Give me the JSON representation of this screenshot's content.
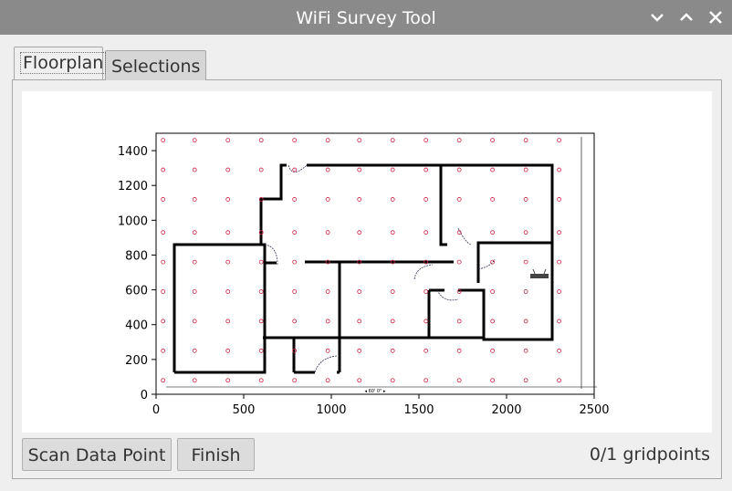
{
  "window": {
    "title": "WiFi Survey Tool"
  },
  "tabs": [
    {
      "label": "Floorplan",
      "active": true
    },
    {
      "label": "Selections",
      "active": false
    }
  ],
  "chart_data": {
    "type": "scatter",
    "x_ticks": [
      "0",
      "500",
      "1000",
      "1500",
      "2000",
      "2500"
    ],
    "y_ticks": [
      "0",
      "200",
      "400",
      "600",
      "800",
      "1000",
      "1200",
      "1400"
    ],
    "xlim": [
      0,
      2500
    ],
    "ylim": [
      0,
      1500
    ],
    "grid_x": [
      40,
      220,
      410,
      600,
      790,
      980,
      1160,
      1350,
      1540,
      1730,
      1920,
      2110,
      2300
    ],
    "grid_y": [
      80,
      250,
      420,
      590,
      760,
      930,
      1120,
      1290,
      1460
    ],
    "point_color": "#cc2244"
  },
  "buttons": {
    "scan": "Scan Data Point",
    "finish": "Finish"
  },
  "status": {
    "gridpoints": "0/1 gridpoints"
  }
}
